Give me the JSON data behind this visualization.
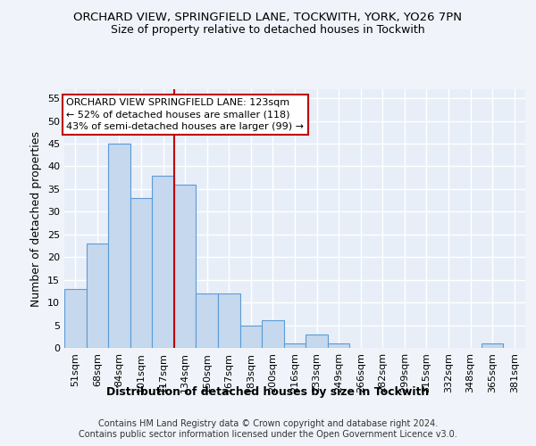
{
  "title_line1": "ORCHARD VIEW, SPRINGFIELD LANE, TOCKWITH, YORK, YO26 7PN",
  "title_line2": "Size of property relative to detached houses in Tockwith",
  "xlabel": "Distribution of detached houses by size in Tockwith",
  "ylabel": "Number of detached properties",
  "bar_labels": [
    "51sqm",
    "68sqm",
    "84sqm",
    "101sqm",
    "117sqm",
    "134sqm",
    "150sqm",
    "167sqm",
    "183sqm",
    "200sqm",
    "216sqm",
    "233sqm",
    "249sqm",
    "266sqm",
    "282sqm",
    "299sqm",
    "315sqm",
    "332sqm",
    "348sqm",
    "365sqm",
    "381sqm"
  ],
  "bar_values": [
    13,
    23,
    45,
    33,
    38,
    36,
    12,
    12,
    5,
    6,
    1,
    3,
    1,
    0,
    0,
    0,
    0,
    0,
    0,
    1,
    0
  ],
  "bar_color": "#c5d8ee",
  "bar_edge_color": "#5b9bd5",
  "vline_x": 4.5,
  "vline_color": "#c00000",
  "ylim": [
    0,
    57
  ],
  "yticks": [
    0,
    5,
    10,
    15,
    20,
    25,
    30,
    35,
    40,
    45,
    50,
    55
  ],
  "annotation_text": "ORCHARD VIEW SPRINGFIELD LANE: 123sqm\n← 52% of detached houses are smaller (118)\n43% of semi-detached houses are larger (99) →",
  "annotation_box_color": "#ffffff",
  "annotation_box_edge": "#c00000",
  "footer_line1": "Contains HM Land Registry data © Crown copyright and database right 2024.",
  "footer_line2": "Contains public sector information licensed under the Open Government Licence v3.0.",
  "background_color": "#f0f4fa",
  "plot_bg_color": "#e8eef8",
  "grid_color": "#ffffff",
  "title_fontsize": 9.5,
  "subtitle_fontsize": 9,
  "axis_label_fontsize": 9,
  "tick_fontsize": 8,
  "annotation_fontsize": 8,
  "footer_fontsize": 7
}
